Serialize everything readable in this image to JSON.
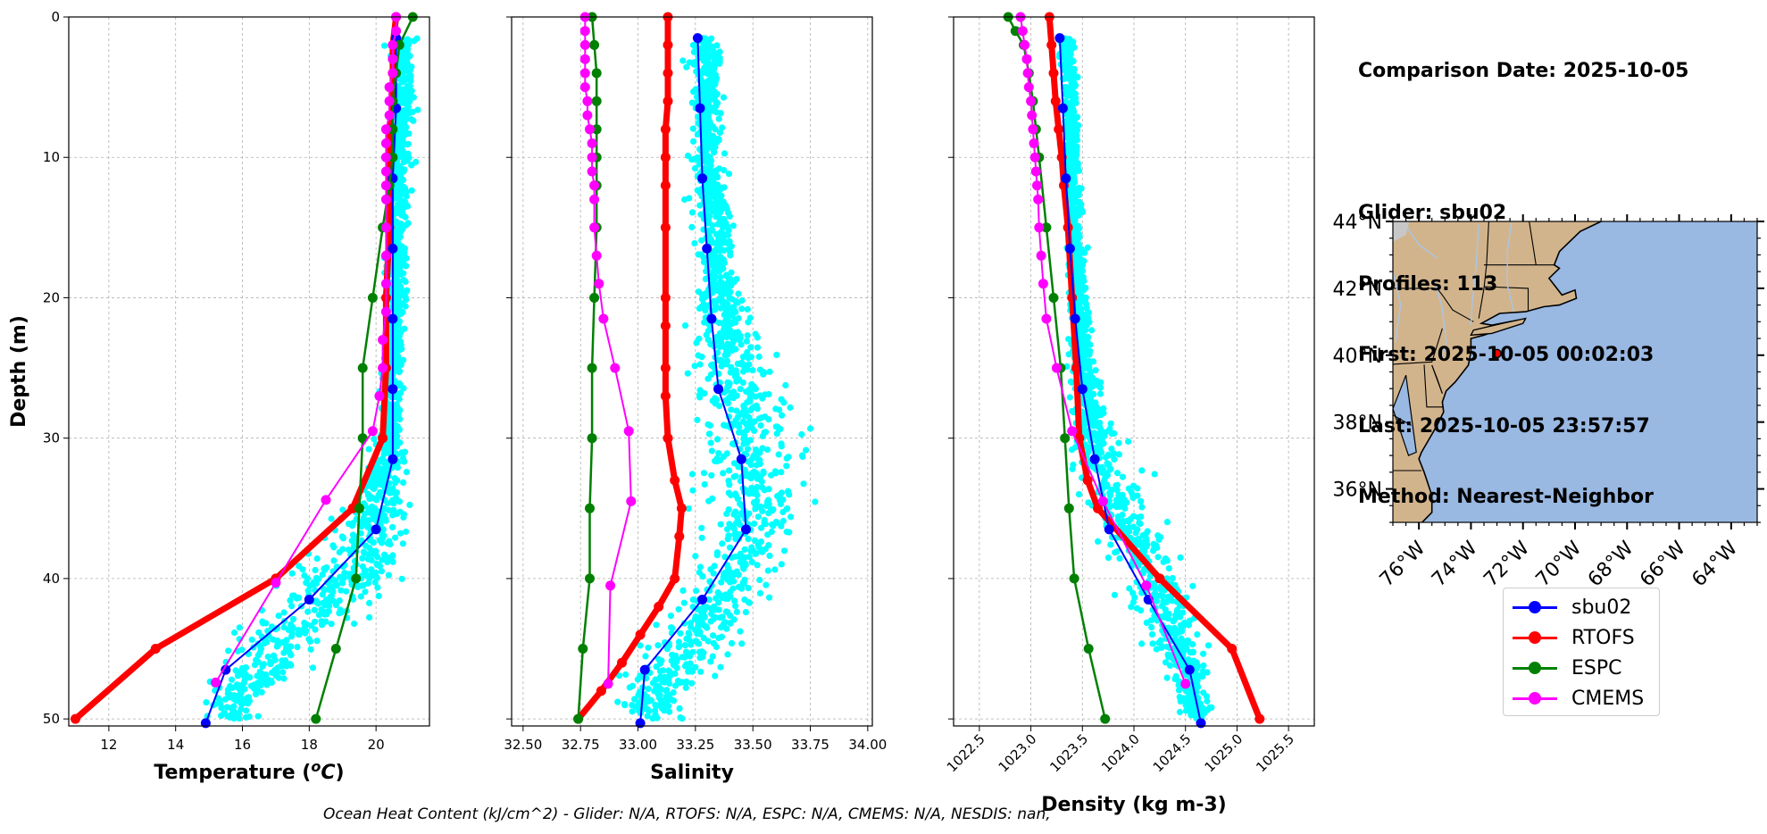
{
  "info": {
    "comparison_date": "Comparison Date: 2025-10-05",
    "glider": "Glider: sbu02",
    "profiles": "Profiles: 113",
    "first": "First: 2025-10-05 00:02:03",
    "last": "Last: 2025-10-05 23:57:57",
    "method": "Method: Nearest-Neighbor"
  },
  "legend": [
    {
      "name": "sbu02",
      "color": "#0000ff"
    },
    {
      "name": "RTOFS",
      "color": "#ff0000"
    },
    {
      "name": "ESPC",
      "color": "#008000"
    },
    {
      "name": "CMEMS",
      "color": "#ff00ff"
    }
  ],
  "footer": "Ocean Heat Content (kJ/cm^2) - Glider: N/A,  RTOFS: N/A,  ESPC: N/A,  CMEMS: N/A,  NESDIS: nan,",
  "colors": {
    "glider_scatter": "#00ffff",
    "land": "#d2b48c",
    "ocean": "#99b8e2",
    "marker": "#ff0000"
  },
  "chart_data": [
    {
      "type": "line",
      "xlabel": "Temperature (°C)",
      "ylabel": "Depth (m)",
      "xlim": [
        10.8,
        21.6
      ],
      "ylim": [
        50.5,
        0
      ],
      "xticks": [
        12,
        14,
        16,
        18,
        20
      ],
      "yticks": [
        0,
        10,
        20,
        30,
        40,
        50
      ],
      "grid": true,
      "scatter": {
        "name": "glider",
        "x_center": [
          20.8,
          20.8,
          20.7,
          20.6,
          20.6,
          20.5,
          20.4,
          20.1,
          19.1,
          17.0,
          15.7
        ],
        "depth": [
          2,
          5,
          10,
          15,
          20,
          25,
          30,
          35,
          40,
          45,
          49
        ],
        "x_spread": [
          0.35,
          0.35,
          0.35,
          0.35,
          0.3,
          0.3,
          0.35,
          0.9,
          1.6,
          1.4,
          0.8
        ]
      },
      "series": [
        {
          "name": "sbu02",
          "depth": [
            1.5,
            6.5,
            11.5,
            16.5,
            21.5,
            26.5,
            31.5,
            36.5,
            41.5,
            46.5,
            50.3
          ],
          "values": [
            20.6,
            20.6,
            20.5,
            20.5,
            20.5,
            20.5,
            20.5,
            20.0,
            18.0,
            15.5,
            14.9
          ]
        },
        {
          "name": "RTOFS",
          "depth": [
            0,
            2,
            4,
            6,
            8,
            10,
            12,
            15,
            20,
            25,
            30,
            35,
            40,
            45,
            50
          ],
          "values": [
            20.6,
            20.5,
            20.5,
            20.5,
            20.4,
            20.4,
            20.4,
            20.4,
            20.3,
            20.3,
            20.2,
            19.3,
            17.0,
            13.4,
            11.0
          ]
        },
        {
          "name": "ESPC",
          "depth": [
            0,
            2,
            4,
            6,
            8,
            10,
            12,
            15,
            20,
            25,
            30,
            35,
            40,
            45,
            50
          ],
          "values": [
            21.1,
            20.7,
            20.6,
            20.5,
            20.5,
            20.5,
            20.4,
            20.2,
            19.9,
            19.6,
            19.6,
            19.5,
            19.4,
            18.8,
            18.2
          ]
        },
        {
          "name": "CMEMS",
          "depth": [
            0,
            1,
            2,
            3,
            4,
            5,
            6,
            7,
            8,
            9,
            10,
            11,
            12,
            13,
            15,
            17,
            19,
            21,
            23,
            25,
            27,
            29.5,
            34.4,
            40.3,
            47.4
          ],
          "values": [
            20.6,
            20.6,
            20.5,
            20.5,
            20.5,
            20.4,
            20.4,
            20.4,
            20.3,
            20.3,
            20.3,
            20.3,
            20.3,
            20.3,
            20.3,
            20.3,
            20.3,
            20.3,
            20.2,
            20.2,
            20.1,
            19.9,
            18.5,
            17.0,
            15.2
          ]
        }
      ]
    },
    {
      "type": "line",
      "xlabel": "Salinity",
      "ylabel": "",
      "xlim": [
        32.45,
        34.02
      ],
      "ylim": [
        50.5,
        0
      ],
      "xticks": [
        32.5,
        32.75,
        33.0,
        33.25,
        33.5,
        33.75,
        34.0
      ],
      "yticks": [
        0,
        10,
        20,
        30,
        40,
        50
      ],
      "grid": true,
      "scatter": {
        "name": "glider",
        "x_center": [
          33.3,
          33.3,
          33.3,
          33.33,
          33.36,
          33.42,
          33.48,
          33.52,
          33.42,
          33.2,
          33.05
        ],
        "depth": [
          2,
          5,
          10,
          15,
          20,
          25,
          30,
          35,
          40,
          45,
          49
        ],
        "x_spread": [
          0.07,
          0.07,
          0.07,
          0.08,
          0.1,
          0.18,
          0.2,
          0.2,
          0.22,
          0.2,
          0.15
        ]
      },
      "series": [
        {
          "name": "sbu02",
          "depth": [
            1.5,
            6.5,
            11.5,
            16.5,
            21.5,
            26.5,
            31.5,
            36.5,
            41.5,
            46.5,
            50.3
          ],
          "values": [
            33.26,
            33.27,
            33.28,
            33.3,
            33.32,
            33.35,
            33.45,
            33.47,
            33.28,
            33.03,
            33.01
          ]
        },
        {
          "name": "RTOFS",
          "depth": [
            0,
            2,
            4,
            6,
            8,
            10,
            12,
            15,
            20,
            22,
            25,
            27,
            30,
            33,
            35,
            37,
            40,
            42,
            44,
            46,
            48,
            50
          ],
          "values": [
            33.13,
            33.13,
            33.13,
            33.13,
            33.12,
            33.12,
            33.12,
            33.12,
            33.12,
            33.12,
            33.12,
            33.12,
            33.13,
            33.16,
            33.19,
            33.18,
            33.16,
            33.09,
            33.01,
            32.93,
            32.84,
            32.74
          ]
        },
        {
          "name": "ESPC",
          "depth": [
            0,
            2,
            4,
            6,
            8,
            10,
            12,
            15,
            20,
            25,
            30,
            35,
            40,
            45,
            50
          ],
          "values": [
            32.8,
            32.81,
            32.82,
            32.82,
            32.82,
            32.82,
            32.82,
            32.82,
            32.81,
            32.8,
            32.8,
            32.79,
            32.79,
            32.76,
            32.74
          ]
        },
        {
          "name": "CMEMS",
          "depth": [
            0,
            1,
            2,
            3,
            4,
            5,
            6,
            7,
            8,
            9,
            10,
            11,
            12,
            13,
            15,
            17,
            19,
            21.5,
            25,
            29.5,
            34.5,
            40.5,
            47.5
          ],
          "values": [
            32.77,
            32.77,
            32.77,
            32.77,
            32.77,
            32.77,
            32.78,
            32.78,
            32.79,
            32.8,
            32.8,
            32.8,
            32.81,
            32.81,
            32.81,
            32.82,
            32.83,
            32.85,
            32.9,
            32.96,
            32.97,
            32.88,
            32.87
          ]
        }
      ]
    },
    {
      "type": "line",
      "xlabel": "Density (kg m-3)",
      "ylabel": "",
      "xlim": [
        1022.25,
        1025.75
      ],
      "ylim": [
        50.5,
        0
      ],
      "xticks": [
        1022.5,
        1023.0,
        1023.5,
        1024.0,
        1024.5,
        1025.0,
        1025.5
      ],
      "yticks": [
        0,
        10,
        20,
        30,
        40,
        50
      ],
      "grid": true,
      "scatter": {
        "name": "glider",
        "x_center": [
          1023.35,
          1023.38,
          1023.4,
          1023.42,
          1023.45,
          1023.5,
          1023.6,
          1023.85,
          1024.2,
          1024.45,
          1024.6
        ],
        "depth": [
          2,
          5,
          10,
          15,
          20,
          25,
          30,
          35,
          40,
          45,
          49
        ],
        "x_spread": [
          0.08,
          0.08,
          0.08,
          0.08,
          0.09,
          0.12,
          0.2,
          0.35,
          0.35,
          0.25,
          0.15
        ]
      },
      "series": [
        {
          "name": "sbu02",
          "depth": [
            1.5,
            6.5,
            11.5,
            16.5,
            21.5,
            26.5,
            31.5,
            36.5,
            41.5,
            46.5,
            50.3
          ],
          "values": [
            1023.28,
            1023.31,
            1023.34,
            1023.38,
            1023.43,
            1023.5,
            1023.62,
            1023.76,
            1024.14,
            1024.54,
            1024.65
          ]
        },
        {
          "name": "RTOFS",
          "depth": [
            0,
            2,
            4,
            6,
            8,
            10,
            12,
            15,
            20,
            25,
            30,
            33,
            35,
            40,
            45,
            50
          ],
          "values": [
            1023.18,
            1023.2,
            1023.22,
            1023.24,
            1023.27,
            1023.3,
            1023.32,
            1023.36,
            1023.4,
            1023.44,
            1023.47,
            1023.55,
            1023.65,
            1024.25,
            1024.95,
            1025.22
          ]
        },
        {
          "name": "ESPC",
          "depth": [
            0,
            1,
            2,
            4,
            6,
            8,
            10,
            15,
            20,
            25,
            30,
            35,
            40,
            45,
            50
          ],
          "values": [
            1022.78,
            1022.85,
            1022.93,
            1022.98,
            1023.02,
            1023.05,
            1023.08,
            1023.15,
            1023.22,
            1023.29,
            1023.33,
            1023.37,
            1023.42,
            1023.56,
            1023.72
          ]
        },
        {
          "name": "CMEMS",
          "depth": [
            0,
            1,
            2,
            3,
            4,
            5,
            6,
            7,
            8,
            9,
            10,
            11,
            12,
            13,
            15,
            17,
            19,
            21.5,
            25,
            29.5,
            34.5,
            40.5,
            47.5
          ],
          "values": [
            1022.9,
            1022.92,
            1022.94,
            1022.96,
            1022.97,
            1022.98,
            1023.0,
            1023.01,
            1023.02,
            1023.03,
            1023.04,
            1023.05,
            1023.06,
            1023.07,
            1023.08,
            1023.1,
            1023.12,
            1023.15,
            1023.25,
            1023.4,
            1023.7,
            1024.12,
            1024.5
          ]
        }
      ]
    },
    {
      "type": "map",
      "xlim": [
        -77,
        -63
      ],
      "ylim": [
        35,
        44
      ],
      "xticks": [
        -76,
        -74,
        -72,
        -70,
        -68,
        -66,
        -64
      ],
      "xtick_labels": [
        "76°W",
        "74°W",
        "72°W",
        "70°W",
        "68°W",
        "66°W",
        "64°W"
      ],
      "yticks": [
        36,
        38,
        40,
        42,
        44
      ],
      "ytick_labels": [
        "36°N",
        "38°N",
        "40°N",
        "42°N",
        "44°N"
      ],
      "glider_location": {
        "lon": -73.0,
        "lat": 40.05
      }
    }
  ]
}
